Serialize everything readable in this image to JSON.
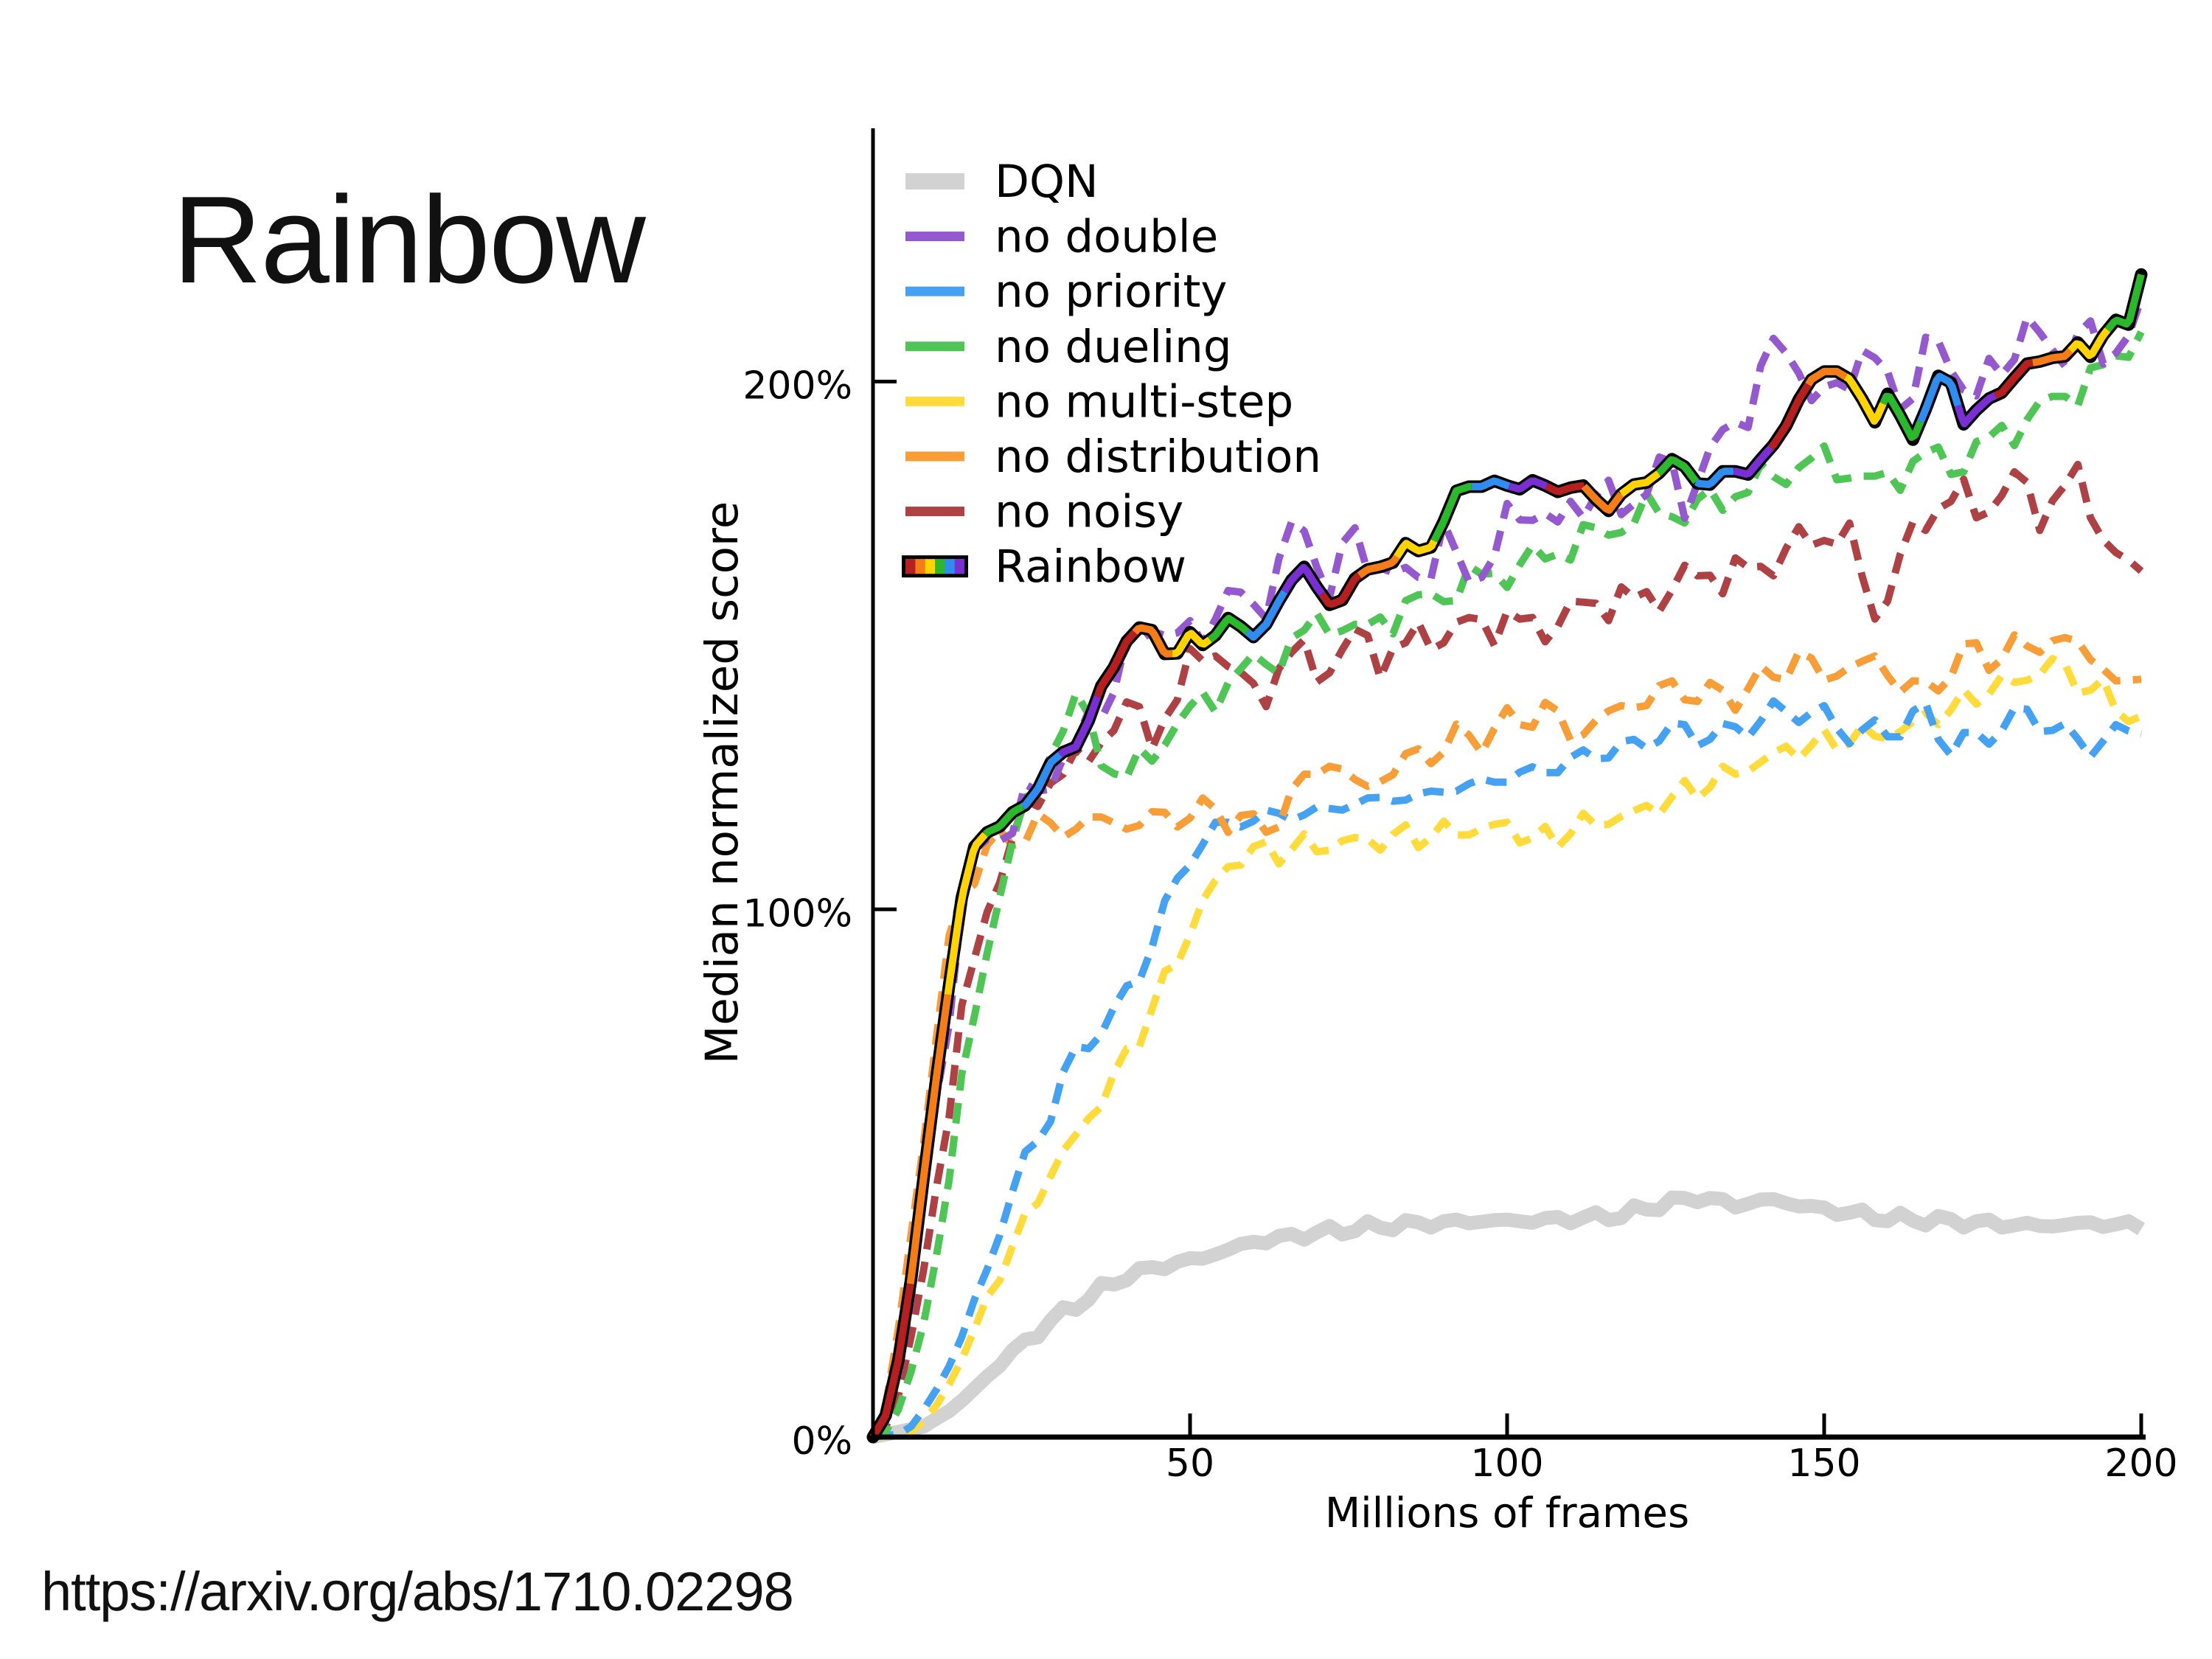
{
  "slide": {
    "title": "Rainbow",
    "source_text": "https://arxiv.org/abs/1710.02298",
    "background_color": "#ffffff",
    "text_color": "#000000"
  },
  "chart_data": {
    "type": "line",
    "title": "",
    "xlabel": "Millions of frames",
    "ylabel": "Median normalized score",
    "xlim": [
      0,
      200
    ],
    "ylim": [
      0,
      248
    ],
    "x_ticks": [
      {
        "value": 50,
        "label": "50"
      },
      {
        "value": 100,
        "label": "100"
      },
      {
        "value": 150,
        "label": "150"
      },
      {
        "value": 200,
        "label": "200"
      }
    ],
    "y_ticks": [
      {
        "value": 0,
        "label": "0%"
      },
      {
        "value": 100,
        "label": "100%"
      },
      {
        "value": 200,
        "label": "200%"
      }
    ],
    "grid": false,
    "axis_color": "#000000",
    "legend": {
      "position": "upper left",
      "entries": [
        {
          "label": "DQN",
          "swatch": "thick-line",
          "color": "#d2d2d2"
        },
        {
          "label": "no double",
          "swatch": "line",
          "color": "#9459cf"
        },
        {
          "label": "no priority",
          "swatch": "line",
          "color": "#45a1f2"
        },
        {
          "label": "no dueling",
          "swatch": "line",
          "color": "#4fc556"
        },
        {
          "label": "no multi-step",
          "swatch": "line",
          "color": "#ffdc3c"
        },
        {
          "label": "no distribution",
          "swatch": "line",
          "color": "#f79e38"
        },
        {
          "label": "no noisy",
          "swatch": "line",
          "color": "#ad4144"
        },
        {
          "label": "Rainbow",
          "swatch": "multicolor",
          "colors": [
            "#b51f1f",
            "#f57d17",
            "#ffd400",
            "#2cb82c",
            "#2f8df0",
            "#7a2fd2"
          ]
        }
      ]
    },
    "x": [
      0,
      2,
      4,
      6,
      8,
      10,
      12,
      14,
      16,
      18,
      20,
      22,
      24,
      26,
      28,
      30,
      32,
      34,
      36,
      38,
      40,
      42,
      44,
      46,
      48,
      50,
      52,
      54,
      56,
      58,
      60,
      62,
      64,
      66,
      68,
      70,
      72,
      74,
      76,
      78,
      80,
      82,
      84,
      86,
      88,
      90,
      92,
      94,
      96,
      98,
      100,
      102,
      104,
      106,
      108,
      110,
      112,
      114,
      116,
      118,
      120,
      122,
      124,
      126,
      128,
      130,
      132,
      134,
      136,
      138,
      140,
      142,
      144,
      146,
      148,
      150,
      152,
      154,
      156,
      158,
      160,
      162,
      164,
      166,
      168,
      170,
      172,
      174,
      176,
      178,
      180,
      182,
      184,
      186,
      188,
      190,
      192,
      194,
      196,
      198,
      200
    ],
    "series": [
      {
        "name": "DQN",
        "style": "solid",
        "color": "#d2d2d2",
        "line_width": 19,
        "values": [
          0.0,
          0.5,
          1.0,
          1.5,
          2.0,
          3.5,
          4.9,
          6.9,
          9.2,
          11.5,
          13.5,
          16.5,
          18.5,
          18.9,
          22.1,
          24.6,
          24.1,
          26.0,
          29.2,
          28.9,
          29.7,
          32.0,
          32.2,
          31.8,
          33.2,
          33.9,
          33.8,
          34.6,
          35.5,
          36.6,
          37.0,
          36.7,
          38.1,
          38.5,
          37.4,
          38.8,
          40.0,
          38.4,
          39.0,
          40.9,
          39.7,
          39.2,
          41.1,
          40.7,
          39.7,
          40.9,
          41.2,
          40.5,
          40.8,
          41.1,
          41.2,
          40.9,
          40.6,
          41.5,
          41.7,
          40.5,
          41.6,
          42.6,
          41.1,
          41.5,
          43.9,
          43.1,
          43.0,
          45.4,
          45.3,
          44.5,
          45.3,
          45.1,
          43.5,
          44.2,
          45.0,
          45.1,
          44.3,
          43.7,
          43.8,
          43.5,
          42.1,
          42.5,
          43.1,
          41.1,
          40.9,
          42.5,
          41.0,
          40.1,
          41.9,
          41.3,
          39.7,
          40.9,
          41.2,
          39.7,
          40.1,
          40.6,
          40.0,
          39.9,
          40.2,
          40.6,
          40.7,
          39.8,
          40.3,
          40.9,
          39.4
        ]
      },
      {
        "name": "no double",
        "style": "dashed",
        "color": "#9459cf",
        "line_width": 10,
        "values": [
          0.0,
          2.9,
          11.8,
          25.9,
          46.4,
          64.4,
          78.1,
          100.8,
          111.2,
          113.3,
          113.0,
          114.4,
          123.7,
          122.4,
          122.8,
          128.7,
          131.8,
          137.5,
          136.1,
          141.1,
          151.5,
          150.8,
          152.7,
          151.9,
          152.4,
          154.7,
          150.4,
          155.0,
          160.4,
          160.1,
          157.8,
          155.1,
          166.4,
          173.4,
          171.7,
          164.8,
          159.1,
          169.4,
          172.3,
          164.0,
          164.7,
          163.8,
          164.8,
          162.9,
          162.7,
          173.3,
          167.7,
          162.0,
          162.9,
          166.9,
          176.9,
          173.8,
          173.7,
          175.0,
          173.4,
          177.3,
          174.2,
          178.4,
          181.3,
          174.8,
          176.8,
          178.6,
          185.7,
          184.8,
          174.1,
          180.7,
          187.5,
          190.9,
          192.3,
          191.3,
          203.0,
          208.2,
          205.4,
          201.6,
          196.4,
          199.0,
          199.8,
          198.5,
          205.9,
          204.5,
          201.9,
          194.8,
          196.8,
          208.4,
          207.7,
          202.0,
          198.4,
          197.3,
          204.4,
          201.3,
          204.2,
          212.2,
          209.3,
          206.0,
          202.9,
          209.1,
          211.5,
          203.4,
          205.4,
          208.7,
          215.6
        ]
      },
      {
        "name": "no priority",
        "style": "dashed",
        "color": "#45a1f2",
        "line_width": 10,
        "values": [
          0.0,
          0.3,
          0.5,
          2.0,
          5.2,
          9.0,
          13.4,
          19.0,
          26.1,
          31.8,
          38.3,
          46.5,
          54.1,
          56.1,
          59.8,
          69.2,
          74.0,
          73.6,
          76.3,
          81.5,
          85.5,
          86.4,
          92.8,
          101.6,
          105.9,
          108.4,
          112.3,
          116.5,
          116.5,
          115.6,
          116.7,
          118.8,
          118.2,
          116.9,
          117.9,
          119.4,
          119.1,
          118.8,
          119.9,
          121.1,
          121.2,
          120.5,
          120.7,
          121.9,
          122.4,
          122.2,
          122.4,
          123.8,
          124.7,
          124.1,
          124.1,
          126.0,
          127.0,
          125.9,
          125.9,
          128.8,
          130.2,
          128.5,
          128.7,
          131.8,
          132.2,
          130.5,
          131.9,
          135.3,
          135.0,
          131.0,
          132.2,
          135.2,
          134.6,
          132.6,
          135.7,
          139.5,
          137.5,
          135.4,
          137.3,
          138.6,
          134.3,
          131.4,
          134.0,
          135.9,
          132.7,
          132.7,
          137.6,
          139.1,
          132.2,
          129.2,
          133.5,
          133.5,
          131.3,
          133.8,
          138.2,
          137.9,
          133.7,
          133.9,
          135.2,
          132.3,
          128.9,
          131.9,
          135.0,
          133.8,
          133.2
        ]
      },
      {
        "name": "no dueling",
        "style": "dashed",
        "color": "#4fc556",
        "line_width": 10,
        "values": [
          0.0,
          1.0,
          5.2,
          12.4,
          21.6,
          34.3,
          48.7,
          68.8,
          79.8,
          91.7,
          102.4,
          112.8,
          121.3,
          121.8,
          129.1,
          133.8,
          140.9,
          137.0,
          127.2,
          125.7,
          125.0,
          130.5,
          128.1,
          131.1,
          135.2,
          138.5,
          141.1,
          137.4,
          142.9,
          145.6,
          148.4,
          146.4,
          144.7,
          151.4,
          152.9,
          156.1,
          152.0,
          152.8,
          154.0,
          154.0,
          155.4,
          152.2,
          158.5,
          159.6,
          159.8,
          158.3,
          158.5,
          165.1,
          163.5,
          163.7,
          161.0,
          165.3,
          169.0,
          166.4,
          167.3,
          166.2,
          172.9,
          172.3,
          170.9,
          171.4,
          173.1,
          178.9,
          175.0,
          174.4,
          173.2,
          177.7,
          179.6,
          175.6,
          178.2,
          179.0,
          184.4,
          182.0,
          180.5,
          183.7,
          185.5,
          187.8,
          181.4,
          181.7,
          182.1,
          182.1,
          182.8,
          179.4,
          184.9,
          186.6,
          187.6,
          182.4,
          182.9,
          188.6,
          189.5,
          191.7,
          187.9,
          192.8,
          196.3,
          197.2,
          197.2,
          195.4,
          202.6,
          203.2,
          204.9,
          204.6,
          209.4
        ]
      },
      {
        "name": "no multi-step",
        "style": "dashed",
        "color": "#ffdc3c",
        "line_width": 10,
        "values": [
          0.0,
          0.2,
          0.3,
          1.0,
          3.1,
          6.0,
          10.0,
          14.7,
          20.4,
          26.6,
          29.7,
          36.2,
          42.5,
          44.3,
          49.4,
          54.3,
          57.3,
          60.4,
          62.6,
          69.0,
          73.6,
          74.0,
          81.1,
          88.3,
          89.6,
          95.2,
          101.7,
          105.5,
          108.1,
          108.4,
          111.9,
          112.8,
          108.6,
          111.3,
          114.3,
          110.9,
          111.2,
          113.0,
          113.6,
          113.3,
          111.2,
          114.2,
          116.0,
          111.7,
          113.6,
          116.7,
          114.1,
          114.1,
          115.3,
          116.1,
          116.5,
          112.6,
          113.5,
          115.7,
          111.8,
          114.3,
          118.2,
          115.9,
          116.1,
          117.6,
          118.7,
          119.7,
          118.0,
          121.3,
          124.4,
          121.0,
          123.1,
          127.1,
          125.6,
          126.2,
          127.9,
          129.7,
          130.9,
          128.5,
          131.1,
          134.0,
          130.2,
          131.4,
          134.9,
          132.8,
          132.3,
          133.7,
          135.6,
          137.2,
          135.0,
          137.8,
          141.6,
          138.9,
          140.8,
          144.3,
          143.0,
          143.4,
          144.5,
          147.5,
          146.4,
          141.0,
          141.5,
          143.6,
          137.6,
          135.6,
          136.6
        ]
      },
      {
        "name": "no distribution",
        "style": "dashed",
        "color": "#f79e38",
        "line_width": 10,
        "values": [
          0.0,
          6.0,
          20.5,
          38.3,
          55.8,
          75.7,
          95.0,
          102.6,
          104.8,
          112.2,
          115.0,
          112.1,
          112.7,
          118.1,
          116.4,
          113.7,
          115.2,
          117.5,
          117.5,
          116.4,
          115.2,
          115.9,
          118.5,
          118.4,
          115.6,
          117.3,
          121.1,
          119.0,
          114.6,
          117.8,
          118.1,
          114.6,
          115.6,
          122.7,
          125.6,
          125.6,
          127.1,
          126.6,
          124.6,
          123.3,
          124.2,
          125.5,
          129.5,
          130.4,
          127.6,
          129.8,
          135.1,
          133.0,
          129.6,
          134.3,
          138.2,
          135.0,
          134.5,
          139.2,
          137.6,
          132.0,
          133.1,
          135.8,
          137.6,
          138.6,
          138.2,
          138.6,
          142.4,
          143.3,
          139.7,
          139.4,
          143.0,
          141.5,
          137.7,
          141.8,
          146.1,
          144.0,
          143.5,
          148.8,
          147.6,
          143.4,
          144.2,
          145.9,
          147.0,
          148.0,
          144.3,
          141.2,
          143.3,
          143.2,
          141.4,
          144.0,
          150.3,
          150.5,
          145.3,
          147.4,
          152.0,
          149.9,
          148.7,
          150.9,
          151.5,
          150.8,
          147.3,
          145.5,
          143.3,
          143.4,
          143.6
        ]
      },
      {
        "name": "no noisy",
        "style": "dashed",
        "color": "#ad4144",
        "line_width": 10,
        "values": [
          0.0,
          1.9,
          7.9,
          19.0,
          31.8,
          47.3,
          60.6,
          81.8,
          90.7,
          99.5,
          105.1,
          113.5,
          120.7,
          119.5,
          123.9,
          125.6,
          130.3,
          128.0,
          131.6,
          133.9,
          139.3,
          138.4,
          130.4,
          136.1,
          139.7,
          149.4,
          147.1,
          148.0,
          146.0,
          144.9,
          142.8,
          138.4,
          145.6,
          148.7,
          151.1,
          143.1,
          144.8,
          149.2,
          153.1,
          151.9,
          143.8,
          149.5,
          150.5,
          154.4,
          149.2,
          150.5,
          154.4,
          155.3,
          154.9,
          150.0,
          156.5,
          155.0,
          155.3,
          150.7,
          153.6,
          158.4,
          158.2,
          158.0,
          154.7,
          161.1,
          159.1,
          160.2,
          156.5,
          160.5,
          165.2,
          163.2,
          163.3,
          159.8,
          166.6,
          164.8,
          165.0,
          163.2,
          168.4,
          172.5,
          169.0,
          169.9,
          169.2,
          173.2,
          163.1,
          155.0,
          158.4,
          167.3,
          173.4,
          171.8,
          175.9,
          177.3,
          181.5,
          174.2,
          175.3,
          178.4,
          182.9,
          180.9,
          171.8,
          177.4,
          180.4,
          184.3,
          174.2,
          170.0,
          167.6,
          166.2,
          164.1
        ]
      },
      {
        "name": "Rainbow",
        "style": "multicolor-solid",
        "line_width": 10,
        "outline_color": "#000000",
        "colors": [
          "#b51f1f",
          "#f57d17",
          "#ffd400",
          "#2cb82c",
          "#2f8df0",
          "#7a2fd2"
        ],
        "segment_len": 5.9,
        "values": [
          0.0,
          4.1,
          14.6,
          29.8,
          49.3,
          68.1,
          85.6,
          102.2,
          111.9,
          114.6,
          115.7,
          118.4,
          119.7,
          122.8,
          127.8,
          129.8,
          130.8,
          135.7,
          142.3,
          145.9,
          150.8,
          153.4,
          152.9,
          148.4,
          148.5,
          152.5,
          150.1,
          151.9,
          155.2,
          153.6,
          151.6,
          154.0,
          158.4,
          162.4,
          164.9,
          161.1,
          157.7,
          158.6,
          162.7,
          164.4,
          164.9,
          165.7,
          169.4,
          167.9,
          168.6,
          173.5,
          179.3,
          180.1,
          180.1,
          181.2,
          180.3,
          179.6,
          181.3,
          180.3,
          179.1,
          179.9,
          180.3,
          177.7,
          175.5,
          178.7,
          180.5,
          180.9,
          182.7,
          185.3,
          183.9,
          180.7,
          180.5,
          183.0,
          183.0,
          182.4,
          185.3,
          188.0,
          191.6,
          196.6,
          200.4,
          201.9,
          201.9,
          200.5,
          196.7,
          192.3,
          197.7,
          193.6,
          189.0,
          194.7,
          201.1,
          199.8,
          191.9,
          194.6,
          196.8,
          197.9,
          200.7,
          203.4,
          203.8,
          204.5,
          204.8,
          207.4,
          204.7,
          208.8,
          211.7,
          210.8,
          220.3
        ]
      }
    ]
  }
}
